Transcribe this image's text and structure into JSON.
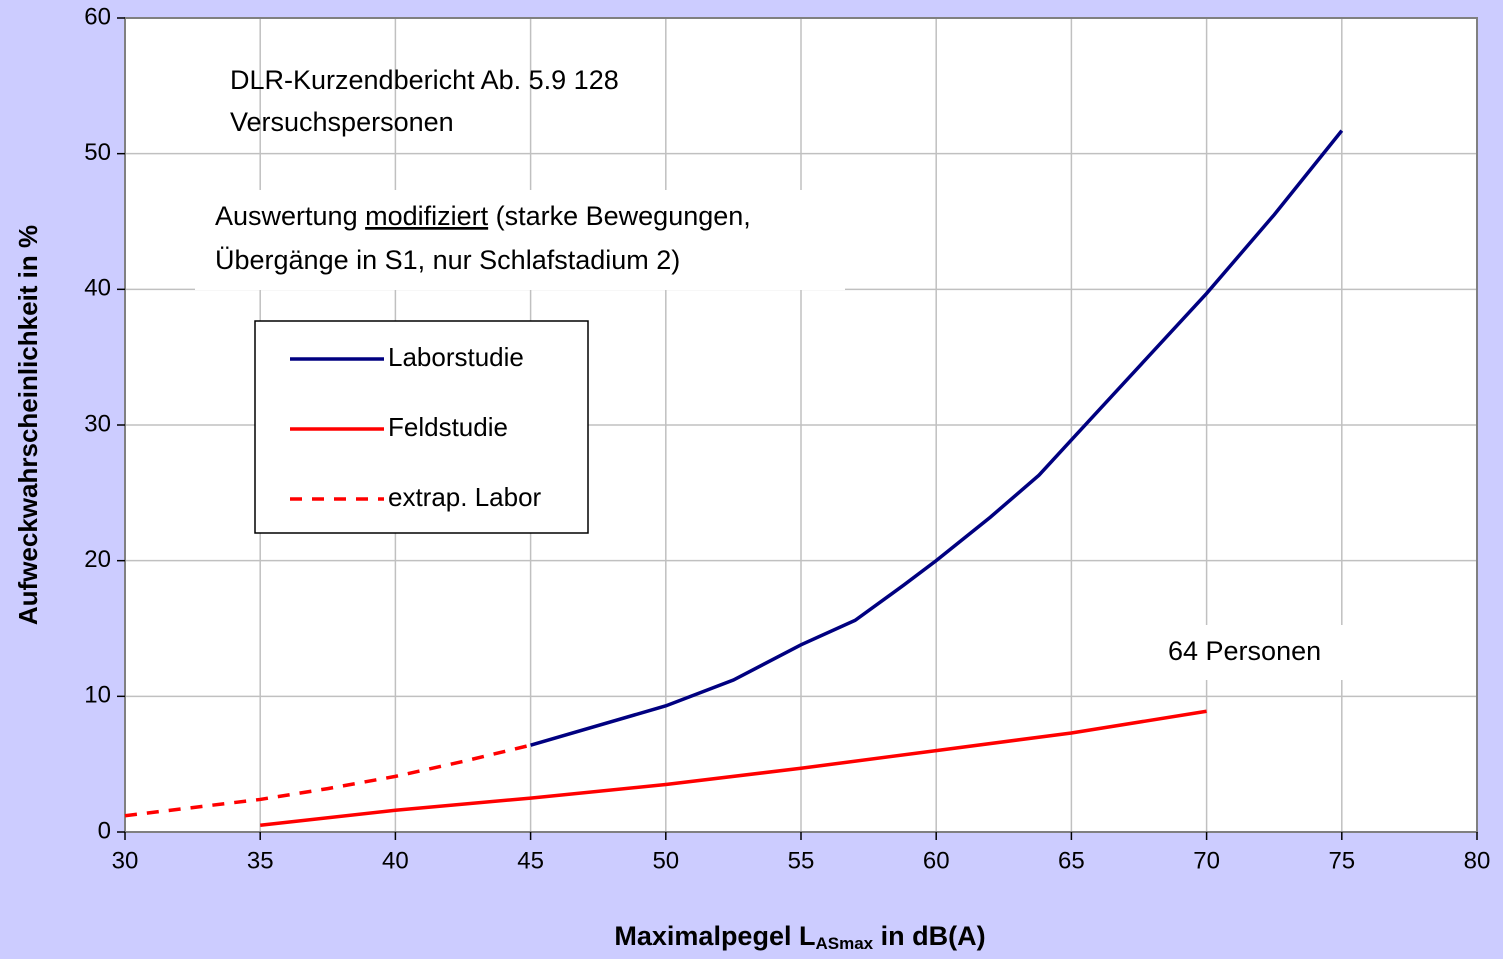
{
  "chart_data": {
    "type": "line",
    "x_label_parts": [
      "Maximalpegel L",
      "ASmax",
      " in dB(A)"
    ],
    "y_label": "Aufweckwahrscheinlichkeit in %",
    "annotations": [
      {
        "lines": [
          "DLR-Kurzendbericht Ab. 5.9 128",
          "Versuchspersonen"
        ]
      },
      {
        "lines": [
          "Auswertung ",
          "modifiziert",
          " (starke Bewegungen,",
          "Übergänge in S1, nur Schlafstadium 2)"
        ]
      },
      {
        "lines": [
          "64 Personen"
        ]
      }
    ],
    "xlim": [
      30,
      80
    ],
    "xticks": [
      30,
      35,
      40,
      45,
      50,
      55,
      60,
      65,
      70,
      75,
      80
    ],
    "ylim": [
      0,
      60
    ],
    "yticks": [
      0,
      10,
      20,
      30,
      40,
      50,
      60
    ],
    "grid": true,
    "series": [
      {
        "name": "Laborstudie",
        "color": "#000080",
        "style": "solid",
        "x": [
          45,
          50,
          52.5,
          55,
          57,
          58.8,
          60,
          62,
          63.8,
          65,
          67.5,
          70,
          72.5,
          75
        ],
        "values": [
          6.4,
          9.3,
          11.2,
          13.8,
          15.6,
          18.2,
          20.0,
          23.2,
          26.3,
          28.9,
          34.3,
          39.7,
          45.5,
          51.7
        ]
      },
      {
        "name": "Feldstudie",
        "color": "#ff0000",
        "style": "solid",
        "x": [
          35,
          40,
          45,
          50,
          55,
          60,
          65,
          70
        ],
        "values": [
          0.5,
          1.6,
          2.5,
          3.5,
          4.7,
          6.0,
          7.3,
          8.9
        ]
      },
      {
        "name": "extrap. Labor",
        "color": "#ff0000",
        "style": "dashed",
        "x": [
          30,
          32.5,
          35,
          37.5,
          40,
          42.5,
          45
        ],
        "values": [
          1.2,
          1.8,
          2.4,
          3.2,
          4.1,
          5.2,
          6.4
        ]
      }
    ]
  }
}
